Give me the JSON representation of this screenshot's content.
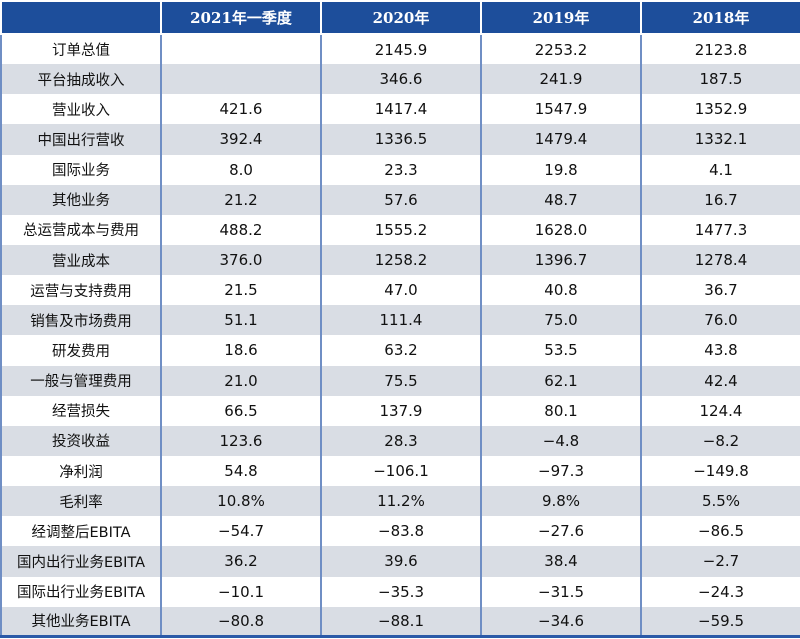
{
  "header": [
    "",
    "2021年一季度",
    "2020年",
    "2019年",
    "2018年"
  ],
  "rows": [
    {
      "label": "订单总值",
      "values": [
        "",
        "2145.9",
        "2253.2",
        "2123.8"
      ]
    },
    {
      "label": "平台抽成收入",
      "values": [
        "",
        "346.6",
        "241.9",
        "187.5"
      ]
    },
    {
      "label": "营业收入",
      "values": [
        "421.6",
        "1417.4",
        "1547.9",
        "1352.9"
      ]
    },
    {
      "label": "中国出行营收",
      "values": [
        "392.4",
        "1336.5",
        "1479.4",
        "1332.1"
      ]
    },
    {
      "label": "国际业务",
      "values": [
        "8.0",
        "23.3",
        "19.8",
        "4.1"
      ]
    },
    {
      "label": "其他业务",
      "values": [
        "21.2",
        "57.6",
        "48.7",
        "16.7"
      ]
    },
    {
      "label": "总运营成本与费用",
      "values": [
        "488.2",
        "1555.2",
        "1628.0",
        "1477.3"
      ]
    },
    {
      "label": "营业成本",
      "values": [
        "376.0",
        "1258.2",
        "1396.7",
        "1278.4"
      ]
    },
    {
      "label": "运营与支持费用",
      "values": [
        "21.5",
        "47.0",
        "40.8",
        "36.7"
      ]
    },
    {
      "label": "销售及市场费用",
      "values": [
        "51.1",
        "111.4",
        "75.0",
        "76.0"
      ]
    },
    {
      "label": "研发费用",
      "values": [
        "18.6",
        "63.2",
        "53.5",
        "43.8"
      ]
    },
    {
      "label": "一般与管理费用",
      "values": [
        "21.0",
        "75.5",
        "62.1",
        "42.4"
      ]
    },
    {
      "label": "经营损失",
      "values": [
        "66.5",
        "137.9",
        "80.1",
        "124.4"
      ]
    },
    {
      "label": "投资收益",
      "values": [
        "123.6",
        "28.3",
        "−4.8",
        "−8.2"
      ]
    },
    {
      "label": "净利润",
      "values": [
        "54.8",
        "−106.1",
        "−97.3",
        "−149.8"
      ]
    },
    {
      "label": "毛利率",
      "values": [
        "10.8%",
        "11.2%",
        "9.8%",
        "5.5%"
      ]
    },
    {
      "label": "经调整后EBITA",
      "values": [
        "−54.7",
        "−83.8",
        "−27.6",
        "−86.5"
      ]
    },
    {
      "label": "国内出行业务EBITA",
      "values": [
        "36.2",
        "39.6",
        "38.4",
        "−2.7"
      ]
    },
    {
      "label": "国际出行业务EBITA",
      "values": [
        "−10.1",
        "−35.3",
        "−31.5",
        "−24.3"
      ]
    },
    {
      "label": "其他业务EBITA",
      "values": [
        "−80.8",
        "−88.1",
        "−34.6",
        "−59.5"
      ]
    }
  ]
}
